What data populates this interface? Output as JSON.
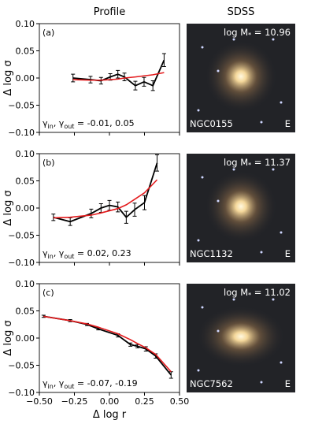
{
  "column_titles": [
    "Profile",
    "SDSS"
  ],
  "chart_data": [
    {
      "type": "line",
      "panel_label": "(a)",
      "ylabel": "Δ log σ",
      "annotation": [
        "γ",
        "in",
        ", γ",
        "out",
        " = -0.01, 0.05"
      ],
      "x": [
        -0.26,
        -0.135,
        -0.06,
        0.006,
        0.06,
        0.107,
        0.185,
        0.247,
        0.31,
        0.39
      ],
      "series": [
        {
          "color": "#000000",
          "values": [
            0.0,
            -0.003,
            -0.005,
            0.002,
            0.007,
            0.002,
            -0.014,
            -0.007,
            -0.014,
            0.033
          ],
          "errors": [
            0.007,
            0.006,
            0.006,
            0.006,
            0.007,
            0.007,
            0.008,
            0.008,
            0.009,
            0.012
          ]
        },
        {
          "color": "#e41a1c",
          "values": [
            -0.003,
            -0.004,
            -0.004,
            -0.003,
            -0.002,
            0.0,
            0.002,
            0.004,
            0.006,
            0.01
          ]
        }
      ],
      "xlim": [
        -0.5,
        0.5
      ],
      "ylim": [
        -0.1,
        0.1
      ],
      "xticks": [
        {
          "value": -0.5,
          "label": "−0.50"
        },
        {
          "value": -0.25,
          "label": "−0.25"
        },
        {
          "value": 0,
          "label": "0.00"
        },
        0.25,
        {
          "value": 0.5,
          "label": "0.50"
        }
      ],
      "yticks": [
        {
          "value": 0.1,
          "label": "0.10"
        },
        0.05,
        {
          "value": 0,
          "label": "0.00"
        },
        {
          "value": -0.05,
          "label": "−0.05"
        },
        {
          "value": -0.1,
          "label": "−0.10"
        }
      ],
      "image": {
        "mass_label": [
          "log M",
          "*",
          " = 10.96"
        ],
        "name": "NGC0155",
        "morphology": "E"
      }
    },
    {
      "type": "line",
      "panel_label": "(b)",
      "ylabel": "Δ log σ",
      "annotation": [
        "γ",
        "in",
        ", γ",
        "out",
        " = 0.02, 0.23"
      ],
      "x": [
        -0.4,
        -0.28,
        -0.13,
        -0.06,
        0.0,
        0.06,
        0.12,
        0.18,
        0.25,
        0.34
      ],
      "series": [
        {
          "color": "#000000",
          "values": [
            -0.017,
            -0.025,
            -0.01,
            0.0,
            0.005,
            0.002,
            -0.017,
            -0.003,
            0.01,
            0.083
          ],
          "errors": [
            0.006,
            0.007,
            0.008,
            0.008,
            0.009,
            0.009,
            0.011,
            0.012,
            0.013,
            0.015
          ]
        },
        {
          "color": "#e41a1c",
          "values": [
            -0.018,
            -0.017,
            -0.013,
            -0.009,
            -0.005,
            -0.001,
            0.006,
            0.016,
            0.028,
            0.052
          ]
        }
      ],
      "xlim": [
        -0.5,
        0.5
      ],
      "ylim": [
        -0.1,
        0.1
      ],
      "xticks": [
        {
          "value": -0.5,
          "label": "−0.50"
        },
        {
          "value": -0.25,
          "label": "−0.25"
        },
        {
          "value": 0,
          "label": "0.00"
        },
        0.25,
        {
          "value": 0.5,
          "label": "0.50"
        }
      ],
      "yticks": [
        {
          "value": 0.1,
          "label": "0.10"
        },
        0.05,
        {
          "value": 0,
          "label": "0.00"
        },
        {
          "value": -0.05,
          "label": "−0.05"
        },
        {
          "value": -0.1,
          "label": "−0.10"
        }
      ],
      "image": {
        "mass_label": [
          "log M",
          "*",
          " = 11.37"
        ],
        "name": "NGC1132",
        "morphology": "E"
      }
    },
    {
      "type": "line",
      "panel_label": "(c)",
      "ylabel": "Δ log σ",
      "xlabel": "Δ log r",
      "annotation": [
        "γ",
        "in",
        ", γ",
        "out",
        " = -0.07, -0.19"
      ],
      "x": [
        -0.47,
        -0.28,
        -0.16,
        -0.08,
        0.06,
        0.15,
        0.2,
        0.26,
        0.33,
        0.44
      ],
      "series": [
        {
          "color": "#000000",
          "values": [
            0.04,
            0.032,
            0.025,
            0.017,
            0.005,
            -0.012,
            -0.015,
            -0.02,
            -0.033,
            -0.068
          ],
          "errors": [
            0.002,
            0.002,
            0.002,
            0.002,
            0.003,
            0.003,
            0.003,
            0.004,
            0.004,
            0.006
          ]
        },
        {
          "color": "#e41a1c",
          "values": [
            0.04,
            0.032,
            0.026,
            0.02,
            0.008,
            -0.003,
            -0.01,
            -0.018,
            -0.03,
            -0.062
          ]
        }
      ],
      "xlim": [
        -0.5,
        0.5
      ],
      "ylim": [
        -0.1,
        0.1
      ],
      "xticks": [
        {
          "value": -0.5,
          "label": "−0.50"
        },
        {
          "value": -0.25,
          "label": "−0.25"
        },
        {
          "value": 0,
          "label": "0.00"
        },
        0.25,
        {
          "value": 0.5,
          "label": "0.50"
        }
      ],
      "yticks": [
        {
          "value": 0.1,
          "label": "0.10"
        },
        0.05,
        {
          "value": 0,
          "label": "0.00"
        },
        {
          "value": -0.05,
          "label": "−0.05"
        },
        {
          "value": -0.1,
          "label": "−0.10"
        }
      ],
      "image": {
        "mass_label": [
          "log M",
          "*",
          " = 11.02"
        ],
        "name": "NGC7562",
        "morphology": "E"
      }
    }
  ]
}
